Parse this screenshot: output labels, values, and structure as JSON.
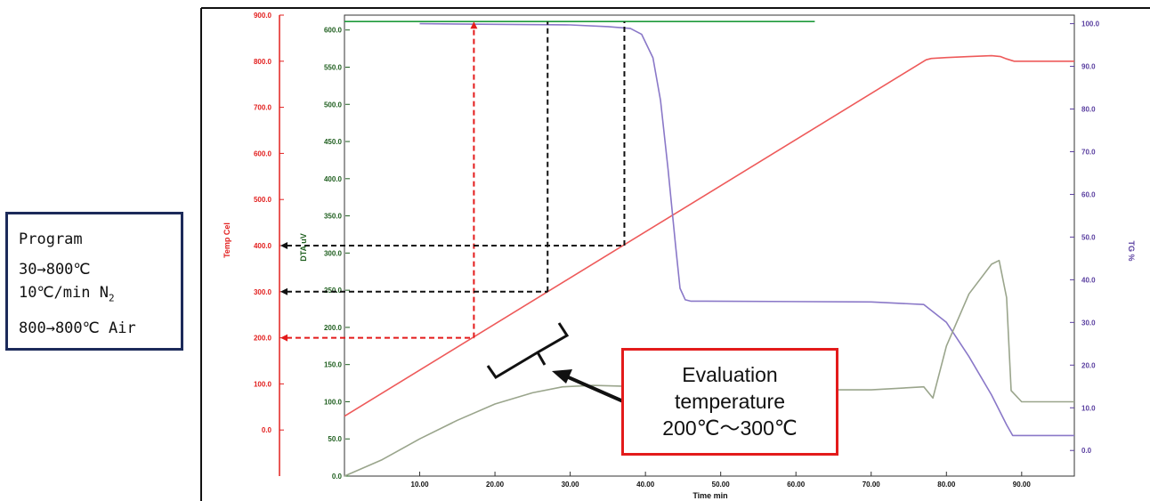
{
  "program": {
    "title": "Program",
    "step1": "30→800℃",
    "step2_prefix": "10℃/min N",
    "step2_sub": "2",
    "step3": "800→800℃ Air"
  },
  "evaluation": {
    "line1": "Evaluation",
    "line2": "temperature",
    "line3": "200℃～300℃"
  },
  "chart_data": {
    "type": "line",
    "xlabel": "Time min",
    "xlim": [
      0,
      97
    ],
    "xticks": [
      "10.00",
      "20.00",
      "30.00",
      "40.00",
      "50.00",
      "60.00",
      "70.00",
      "80.00",
      "90.00"
    ],
    "axes": {
      "temp": {
        "label": "Temp Cel",
        "color": "#e2201f",
        "lim": [
          -100,
          900
        ],
        "ticks": [
          "900.0",
          "800.0",
          "700.0",
          "600.0",
          "500.0",
          "400.0",
          "300.0",
          "200.0",
          "100.0",
          "0.0"
        ]
      },
      "dta": {
        "label": "DTA uV",
        "color": "#1f5f1f",
        "lim": [
          0,
          620
        ],
        "ticks": [
          "600.0",
          "550.0",
          "500.0",
          "450.0",
          "400.0",
          "350.0",
          "300.0",
          "250.0",
          "200.0",
          "150.0",
          "100.0",
          "50.0",
          "0.0"
        ]
      },
      "tg": {
        "label": "TG %",
        "color": "#5a3fa0",
        "lim": [
          -6,
          102
        ],
        "ticks": [
          "100.0",
          "90.0",
          "80.0",
          "70.0",
          "60.0",
          "50.0",
          "40.0",
          "30.0",
          "20.0",
          "10.0",
          "0.0"
        ]
      }
    },
    "series": [
      {
        "axis": "temp",
        "color": "#ee5a5a",
        "x": [
          0,
          77.3,
          78,
          80,
          83,
          86,
          87.2,
          88,
          89,
          97
        ],
        "y": [
          30,
          803,
          806,
          808,
          810,
          812,
          810,
          805,
          800,
          800
        ]
      },
      {
        "axis": "tg",
        "color": "#8a78c8",
        "x": [
          10,
          30,
          35,
          38,
          39.5,
          41,
          42,
          43,
          44,
          44.6,
          45.3,
          46,
          48,
          70,
          77,
          80,
          83,
          86,
          88,
          88.8,
          97
        ],
        "y": [
          100,
          99.7,
          99.3,
          98.9,
          97.5,
          92,
          82,
          66,
          48,
          38,
          35.3,
          35,
          35,
          34.8,
          34.2,
          30,
          22,
          13,
          6,
          3.5,
          3.5
        ]
      },
      {
        "axis": "dta",
        "color": "#9aa58c",
        "x": [
          0,
          5,
          10,
          15,
          20,
          25,
          29,
          33,
          40,
          50,
          60,
          70,
          77,
          78.2,
          80,
          83,
          86,
          87,
          88,
          88.6,
          90,
          97
        ],
        "y": [
          0,
          22,
          50,
          75,
          97,
          112,
          120,
          122,
          120,
          118,
          116,
          116,
          120,
          105,
          175,
          245,
          285,
          290,
          240,
          115,
          100,
          100
        ]
      },
      {
        "axis": "tg",
        "color": "#1e9a3a",
        "x": [
          0,
          62.5
        ],
        "y": [
          100.5,
          100.5
        ]
      }
    ],
    "annotations": [
      {
        "type": "v-dashed",
        "color": "#e31b1b",
        "x": 17.2,
        "from_temp": 200,
        "to_tg": 100.5
      },
      {
        "type": "h-dashed",
        "color": "#e31b1b",
        "temp": 200,
        "x_to": 17.2
      },
      {
        "type": "v-dashed",
        "color": "#111111",
        "x": 27,
        "from_temp": 300,
        "to_tg": 100.5
      },
      {
        "type": "h-dashed",
        "color": "#111111",
        "temp": 300,
        "x_to": 27
      },
      {
        "type": "v-dashed",
        "color": "#111111",
        "x": 37.2,
        "from_temp": 400,
        "to_tg": 100.5
      },
      {
        "type": "h-dashed",
        "color": "#111111",
        "temp": 400,
        "x_to": 37.2
      }
    ]
  }
}
